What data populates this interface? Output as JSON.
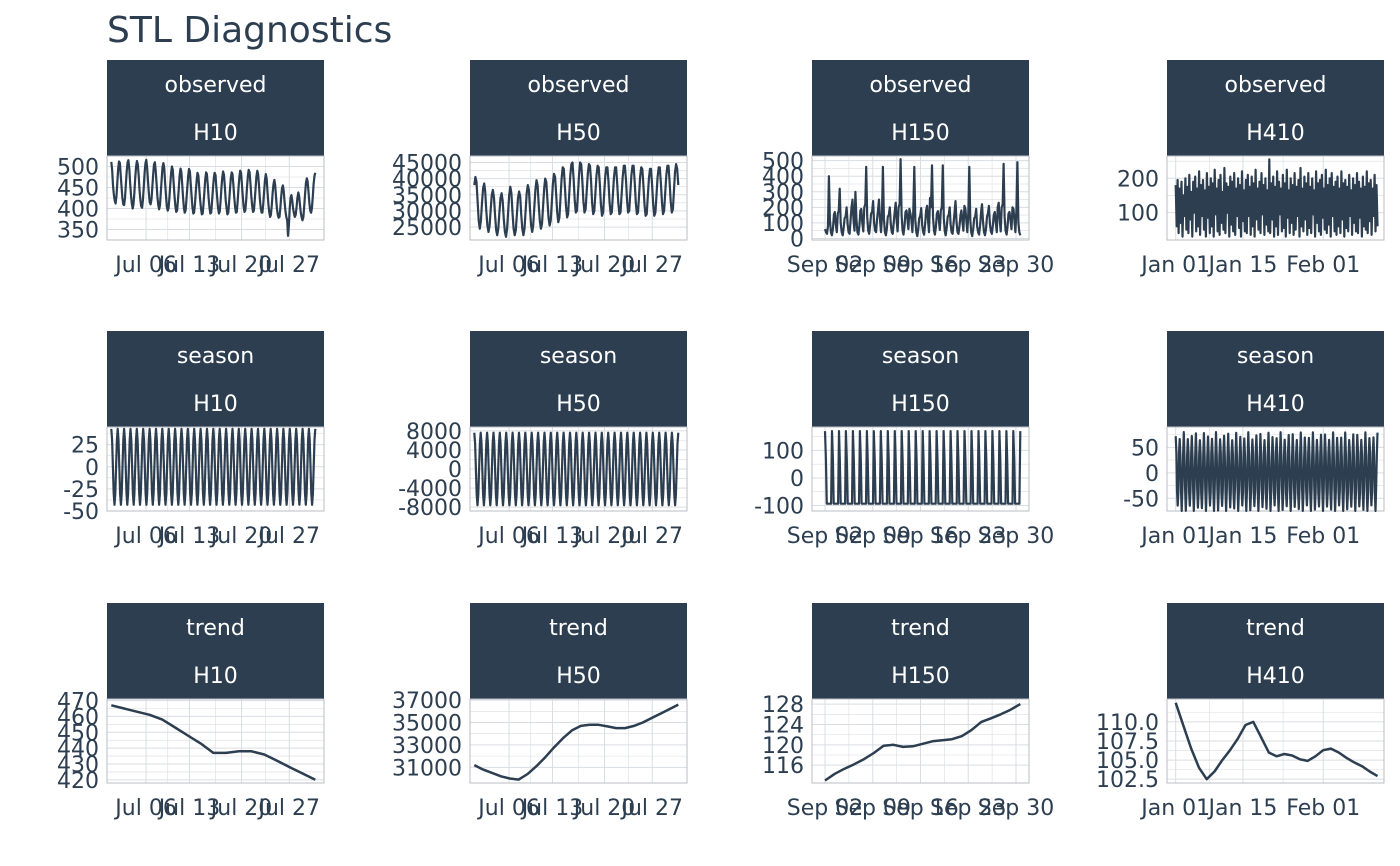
{
  "title": "STL Diagnostics",
  "colors": {
    "strip": "#2c3e50",
    "line": "#2c3e50",
    "text": "#2c3e50",
    "grid": "#d9dde2",
    "panel_border": "#b9bec6"
  },
  "series_names": [
    "H10",
    "H50",
    "H150",
    "H410"
  ],
  "component_names": [
    "observed",
    "season",
    "trend"
  ],
  "chart_data": [
    {
      "type": "line",
      "component": "observed",
      "series": "H10",
      "x_ticks": [
        "Jul 06",
        "Jul 13",
        "Jul 20",
        "Jul 27"
      ],
      "y_ticks": [
        "350",
        "400",
        "450",
        "500"
      ],
      "ylim": [
        325,
        525
      ],
      "values": [
        511,
        490,
        455,
        432,
        418,
        412,
        430,
        462,
        495,
        512,
        508,
        480,
        450,
        425,
        410,
        408,
        425,
        455,
        488,
        510,
        515,
        495,
        462,
        432,
        412,
        400,
        410,
        438,
        472,
        500,
        513,
        505,
        478,
        445,
        420,
        405,
        402,
        420,
        452,
        485,
        508,
        516,
        495,
        465,
        435,
        415,
        410,
        422,
        450,
        482,
        505,
        510,
        490,
        458,
        428,
        408,
        398,
        408,
        438,
        470,
        498,
        508,
        495,
        462,
        430,
        405,
        395,
        400,
        425,
        455,
        485,
        500,
        492,
        462,
        430,
        405,
        392,
        395,
        418,
        448,
        478,
        495,
        488,
        458,
        428,
        402,
        390,
        395,
        420,
        450,
        478,
        494,
        488,
        460,
        430,
        404,
        388,
        390,
        412,
        440,
        468,
        485,
        478,
        450,
        422,
        400,
        386,
        388,
        410,
        440,
        468,
        486,
        482,
        455,
        426,
        402,
        388,
        390,
        415,
        445,
        472,
        485,
        480,
        452,
        425,
        402,
        388,
        392,
        418,
        448,
        475,
        488,
        480,
        450,
        420,
        400,
        386,
        390,
        415,
        445,
        472,
        486,
        482,
        456,
        428,
        404,
        390,
        392,
        418,
        448,
        476,
        490,
        485,
        458,
        428,
        405,
        392,
        395,
        420,
        450,
        478,
        492,
        486,
        458,
        430,
        406,
        392,
        395,
        418,
        448,
        476,
        490,
        482,
        455,
        425,
        402,
        390,
        390,
        412,
        440,
        468,
        482,
        470,
        440,
        410,
        392,
        380,
        385,
        408,
        436,
        458,
        468,
        455,
        425,
        400,
        385,
        378,
        380,
        400,
        428,
        448,
        455,
        442,
        415,
        395,
        380,
        372,
        335,
        360,
        400,
        425,
        432,
        418,
        400,
        388,
        380,
        385,
        402,
        425,
        438,
        430,
        408,
        390,
        378,
        372,
        380,
        405,
        435,
        460,
        472,
        465,
        440,
        415,
        395,
        390,
        400,
        428,
        458,
        478,
        485
      ]
    },
    {
      "type": "line",
      "component": "observed",
      "series": "H50",
      "x_ticks": [
        "Jul 06",
        "Jul 13",
        "Jul 20",
        "Jul 27"
      ],
      "y_ticks": [
        "25000",
        "30000",
        "35000",
        "40000",
        "45000"
      ],
      "ylim": [
        21000,
        47000
      ],
      "values": [
        38000,
        40500,
        39000,
        33000,
        27000,
        24500,
        27000,
        32500,
        37000,
        38500,
        36000,
        30000,
        25500,
        23500,
        25500,
        30500,
        35000,
        36500,
        34000,
        28500,
        24000,
        22500,
        24500,
        29500,
        34000,
        35500,
        33000,
        27500,
        23500,
        22000,
        24500,
        30000,
        35000,
        37500,
        35500,
        29500,
        24500,
        22500,
        24000,
        29000,
        34000,
        36000,
        34500,
        29000,
        24500,
        22500,
        24500,
        30000,
        35500,
        38000,
        36500,
        30500,
        25500,
        23500,
        25500,
        31000,
        36500,
        39500,
        38000,
        32000,
        27000,
        24500,
        26000,
        31500,
        37000,
        40000,
        39000,
        33500,
        28000,
        25500,
        27000,
        32500,
        38500,
        41500,
        40500,
        35000,
        29500,
        26500,
        28000,
        34000,
        40000,
        43500,
        43000,
        37500,
        31500,
        28000,
        29000,
        35000,
        41000,
        44500,
        45000,
        40000,
        33500,
        29500,
        30000,
        35500,
        41500,
        45000,
        44500,
        39500,
        33000,
        29500,
        30500,
        36000,
        41500,
        44500,
        44000,
        39000,
        32500,
        29000,
        30000,
        35500,
        41000,
        44000,
        43500,
        38500,
        32000,
        28500,
        29500,
        35000,
        40500,
        43500,
        43500,
        39000,
        32500,
        29000,
        29500,
        35000,
        40500,
        43500,
        43500,
        38500,
        32500,
        29000,
        29500,
        35000,
        40500,
        44000,
        44000,
        39500,
        33000,
        29500,
        30000,
        35500,
        41000,
        44000,
        44000,
        39000,
        32500,
        29000,
        29500,
        35000,
        40500,
        43500,
        43000,
        38000,
        32000,
        28500,
        29000,
        34500,
        40000,
        43000,
        43000,
        38000,
        32000,
        28500,
        29500,
        35000,
        40500,
        43500,
        43500,
        38500,
        32500,
        29000,
        30000,
        35500,
        41000,
        44000,
        44000,
        39000,
        33000,
        29500,
        30500,
        36500,
        42000,
        44500,
        43000,
        38000
      ]
    },
    {
      "type": "line",
      "component": "observed",
      "series": "H150",
      "x_ticks": [
        "Sep 02",
        "Sep 09",
        "Sep 16",
        "Sep 23",
        "Sep 30"
      ],
      "y_ticks": [
        "0",
        "100",
        "200",
        "300",
        "400",
        "500"
      ],
      "ylim": [
        -10,
        530
      ],
      "values": [
        60,
        40,
        30,
        80,
        400,
        120,
        40,
        20,
        60,
        150,
        170,
        90,
        40,
        160,
        180,
        320,
        100,
        40,
        20,
        70,
        130,
        140,
        200,
        90,
        40,
        30,
        110,
        200,
        250,
        120,
        50,
        300,
        130,
        40,
        25,
        80,
        180,
        190,
        100,
        45,
        200,
        220,
        460,
        140,
        50,
        30,
        90,
        160,
        170,
        240,
        100,
        50,
        40,
        120,
        180,
        250,
        120,
        40,
        130,
        460,
        130,
        40,
        20,
        60,
        140,
        150,
        200,
        90,
        40,
        30,
        100,
        170,
        230,
        110,
        45,
        200,
        220,
        510,
        150,
        50,
        25,
        80,
        170,
        180,
        120,
        60,
        190,
        160,
        120,
        40,
        180,
        460,
        120,
        40,
        15,
        60,
        130,
        145,
        195,
        85,
        40,
        25,
        90,
        180,
        210,
        110,
        40,
        260,
        200,
        470,
        140,
        50,
        25,
        75,
        160,
        175,
        120,
        55,
        180,
        200,
        470,
        130,
        45,
        20,
        70,
        140,
        150,
        200,
        90,
        40,
        30,
        100,
        170,
        240,
        110,
        40,
        30,
        80,
        150,
        180,
        110,
        50,
        210,
        190,
        120,
        40,
        160,
        460,
        120,
        40,
        15,
        60,
        130,
        140,
        190,
        80,
        40,
        25,
        85,
        170,
        220,
        110,
        40,
        20,
        60,
        140,
        160,
        210,
        95,
        45,
        30,
        80,
        150,
        170,
        100,
        40,
        200,
        230,
        120,
        45,
        200,
        220,
        480,
        140,
        50,
        25,
        80,
        160,
        170,
        120,
        60,
        200,
        190,
        120,
        40,
        180,
        490,
        100,
        40,
        20
      ]
    },
    {
      "type": "line",
      "component": "observed",
      "series": "H410",
      "x_ticks": [
        "Jan 01",
        "Jan 15",
        "Feb 01"
      ],
      "y_ticks": [
        "100",
        "200"
      ],
      "ylim": [
        20,
        265
      ],
      "values": [
        180,
        60,
        195,
        40,
        170,
        70,
        190,
        30,
        150,
        90,
        200,
        50,
        175,
        40,
        210,
        80,
        160,
        30,
        190,
        100,
        205,
        45,
        170,
        60,
        220,
        35,
        180,
        90,
        195,
        50,
        165,
        30,
        215,
        85,
        175,
        40,
        200,
        60,
        185,
        30,
        225,
        95,
        170,
        45,
        195,
        35,
        210,
        70,
        160,
        50,
        230,
        40,
        185,
        100,
        175,
        30,
        205,
        65,
        190,
        45,
        215,
        35,
        170,
        90,
        200,
        55,
        180,
        30,
        220,
        75,
        165,
        45,
        195,
        40,
        210,
        90,
        175,
        35,
        205,
        60,
        185,
        30,
        225,
        80,
        170,
        50,
        190,
        40,
        215,
        95,
        180,
        35,
        200,
        65,
        165,
        45,
        255,
        40,
        185,
        80,
        205,
        30,
        175,
        60,
        220,
        35,
        190,
        95,
        170,
        45,
        210,
        55,
        185,
        30,
        225,
        85,
        165,
        40,
        200,
        70,
        180,
        35,
        215,
        50,
        175,
        90,
        195,
        30,
        230,
        60,
        170,
        45,
        205,
        80,
        185,
        35,
        215,
        55,
        175,
        40,
        200,
        95,
        165,
        30,
        220,
        70,
        185,
        45,
        195,
        35,
        210,
        85,
        170,
        50,
        225,
        40,
        180,
        65,
        200,
        30,
        215,
        90,
        175,
        45,
        190,
        35,
        205,
        60,
        170,
        40,
        220,
        80,
        185,
        30,
        195,
        55,
        175,
        45,
        210,
        90,
        165,
        35,
        200,
        70,
        180,
        45,
        215,
        40,
        190,
        85,
        170,
        30,
        205,
        60,
        175,
        50,
        220,
        40,
        185,
        75,
        195,
        35,
        170,
        90,
        210,
        45,
        180,
        60
      ]
    },
    {
      "type": "line",
      "component": "season",
      "series": "H10",
      "x_ticks": [
        "Jul 06",
        "Jul 13",
        "Jul 20",
        "Jul 27"
      ],
      "y_ticks": [
        "-50",
        "-25",
        "0",
        "25"
      ],
      "ylim": [
        -50,
        45
      ],
      "periodic": {
        "cycles": 32,
        "amplitude": 43,
        "points_per_cycle": 8
      }
    },
    {
      "type": "line",
      "component": "season",
      "series": "H50",
      "x_ticks": [
        "Jul 06",
        "Jul 13",
        "Jul 20",
        "Jul 27"
      ],
      "y_ticks": [
        "-8000",
        "-4000",
        "0",
        "4000",
        "8000"
      ],
      "ylim": [
        -8800,
        8800
      ],
      "periodic": {
        "cycles": 32,
        "amplitude": 7600,
        "points_per_cycle": 8
      }
    },
    {
      "type": "line",
      "component": "season",
      "series": "H150",
      "x_ticks": [
        "Sep 02",
        "Sep 09",
        "Sep 16",
        "Sep 23",
        "Sep 30"
      ],
      "y_ticks": [
        "-100",
        "0",
        "100"
      ],
      "ylim": [
        -120,
        185
      ],
      "periodic": {
        "cycles": 28,
        "amplitude": 170,
        "points_per_cycle": 8,
        "spike": true
      }
    },
    {
      "type": "line",
      "component": "season",
      "series": "H410",
      "x_ticks": [
        "Jan 01",
        "Jan 15",
        "Feb 01"
      ],
      "y_ticks": [
        "-50",
        "0",
        "50"
      ],
      "ylim": [
        -75,
        90
      ],
      "periodic": {
        "cycles": 50,
        "amplitude": 80,
        "points_per_cycle": 6,
        "noisy": true
      }
    },
    {
      "type": "line",
      "component": "trend",
      "series": "H10",
      "x_ticks": [
        "Jul 06",
        "Jul 13",
        "Jul 20",
        "Jul 27"
      ],
      "y_ticks": [
        "420",
        "430",
        "440",
        "450",
        "460",
        "470"
      ],
      "ylim": [
        418,
        471
      ],
      "values": [
        467,
        465,
        463,
        461,
        458,
        453,
        448,
        443,
        437,
        437,
        438,
        438,
        436,
        432,
        428,
        424,
        420
      ]
    },
    {
      "type": "line",
      "component": "trend",
      "series": "H50",
      "x_ticks": [
        "Jul 06",
        "Jul 13",
        "Jul 20",
        "Jul 27"
      ],
      "y_ticks": [
        "31000",
        "33000",
        "35000",
        "37000"
      ],
      "ylim": [
        29600,
        37100
      ],
      "values": [
        31200,
        30800,
        30500,
        30200,
        30000,
        29900,
        30400,
        31100,
        31900,
        32800,
        33600,
        34300,
        34700,
        34800,
        34800,
        34650,
        34500,
        34500,
        34700,
        35000,
        35400,
        35800,
        36200,
        36600
      ]
    },
    {
      "type": "line",
      "component": "trend",
      "series": "H150",
      "x_ticks": [
        "Sep 02",
        "Sep 09",
        "Sep 16",
        "Sep 23",
        "Sep 30"
      ],
      "y_ticks": [
        "116",
        "120",
        "124",
        "128"
      ],
      "ylim": [
        112.5,
        129
      ],
      "values": [
        113,
        114.3,
        115.3,
        116.2,
        117.2,
        118.4,
        119.8,
        120.0,
        119.6,
        119.7,
        120.2,
        120.7,
        120.9,
        121.1,
        121.7,
        122.9,
        124.5,
        125.2,
        126.0,
        126.9,
        128.0
      ]
    },
    {
      "type": "line",
      "component": "trend",
      "series": "H410",
      "x_ticks": [
        "Jan 01",
        "Jan 15",
        "Feb 01"
      ],
      "y_ticks": [
        "102.5",
        "105.0",
        "107.5",
        "110.0"
      ],
      "ylim": [
        102,
        113
      ],
      "values": [
        112.5,
        109.5,
        106.5,
        104.0,
        102.5,
        103.5,
        105.0,
        106.3,
        107.8,
        109.6,
        110.0,
        108.0,
        106.0,
        105.5,
        105.8,
        105.6,
        105.1,
        104.9,
        105.5,
        106.3,
        106.5,
        106.0,
        105.3,
        104.7,
        104.2,
        103.5,
        102.9
      ]
    }
  ]
}
